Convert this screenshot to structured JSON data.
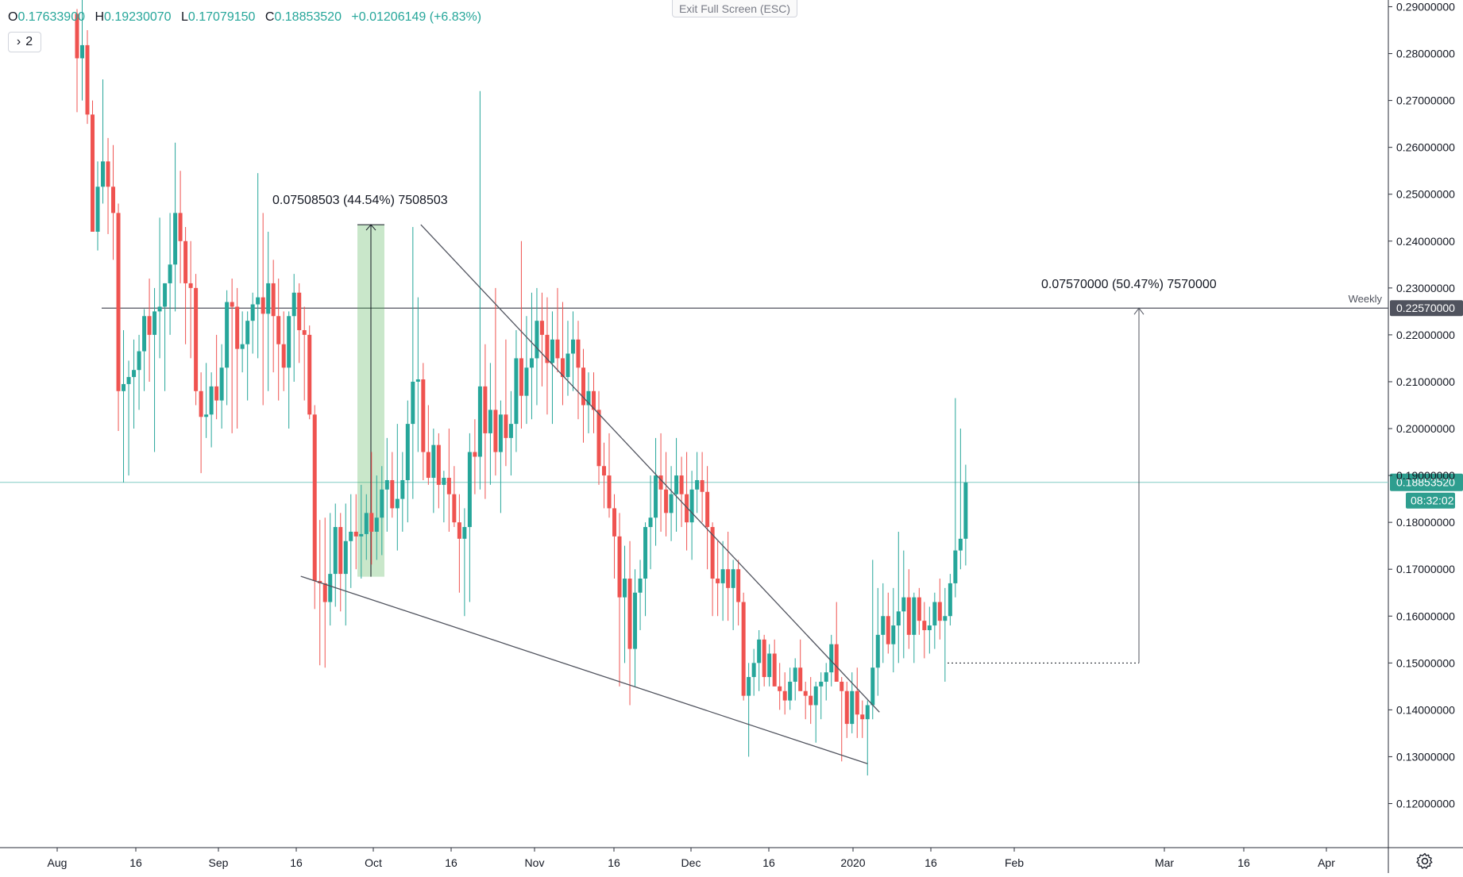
{
  "header": {
    "open_label": "O",
    "open_value": "0.17633900",
    "high_label": "H",
    "high_value": "0.19230070",
    "low_label": "L",
    "low_value": "0.17079150",
    "close_label": "C",
    "close_value": "0.18853520",
    "change_value": "+0.01206149 (+6.83%)",
    "collapse_label": "2",
    "exit_fullscreen_label": "Exit Full Screen (ESC)"
  },
  "settings_icon": "gear-icon",
  "colors": {
    "up": "#26a69a",
    "down": "#ef5350",
    "accent_green": "#2e9e8f",
    "line": "#787b86"
  },
  "chart_data": {
    "type": "candlestick",
    "x_ticks": [
      "Aug",
      "16",
      "Sep",
      "16",
      "Oct",
      "16",
      "Nov",
      "16",
      "Dec",
      "16",
      "2020",
      "16",
      "Feb",
      "Mar",
      "16",
      "Apr"
    ],
    "y_ticks": [
      "0.12000000",
      "0.13000000",
      "0.14000000",
      "0.15000000",
      "0.16000000",
      "0.17000000",
      "0.18000000",
      "0.19000000",
      "0.20000000",
      "0.21000000",
      "0.22000000",
      "0.23000000",
      "0.24000000",
      "0.25000000",
      "0.26000000",
      "0.27000000",
      "0.28000000",
      "0.29000000"
    ],
    "ylim": [
      0.11,
      0.292
    ],
    "grid": false,
    "last_price": {
      "value": 0.1885352,
      "label": "0.18853520",
      "countdown": "08:32:02"
    },
    "weekly_level": {
      "value": 0.2257,
      "label": "0.22570000",
      "name": "Weekly"
    },
    "annotations": [
      {
        "text": "0.07508503 (44.54%) 7508503",
        "from": 0.1684,
        "to": 0.2435
      },
      {
        "text": "0.07570000 (50.47%) 7570000",
        "from": 0.15,
        "to": 0.2257
      }
    ],
    "support_line": [
      [
        0.1685,
        0.1285
      ]
    ],
    "resistance_line": [
      [
        0.2435,
        0.1395
      ]
    ],
    "candles": [
      [
        0.2885,
        0.2895,
        0.2675,
        0.279
      ],
      [
        0.279,
        0.292,
        0.27,
        0.2818
      ],
      [
        0.2818,
        0.285,
        0.265,
        0.267
      ],
      [
        0.267,
        0.27,
        0.243,
        0.242
      ],
      [
        0.242,
        0.257,
        0.238,
        0.2516
      ],
      [
        0.2516,
        0.2745,
        0.248,
        0.257
      ],
      [
        0.257,
        0.262,
        0.2415,
        0.2516
      ],
      [
        0.2516,
        0.2605,
        0.236,
        0.246
      ],
      [
        0.246,
        0.248,
        0.1995,
        0.208
      ],
      [
        0.208,
        0.221,
        0.1885,
        0.2095
      ],
      [
        0.2095,
        0.2145,
        0.19,
        0.211
      ],
      [
        0.211,
        0.219,
        0.2,
        0.2125
      ],
      [
        0.2125,
        0.22,
        0.204,
        0.2165
      ],
      [
        0.2165,
        0.2255,
        0.208,
        0.224
      ],
      [
        0.224,
        0.232,
        0.21,
        0.22
      ],
      [
        0.22,
        0.23,
        0.195,
        0.225
      ],
      [
        0.225,
        0.245,
        0.215,
        0.226
      ],
      [
        0.226,
        0.231,
        0.208,
        0.231
      ],
      [
        0.231,
        0.246,
        0.22,
        0.235
      ],
      [
        0.235,
        0.261,
        0.225,
        0.246
      ],
      [
        0.246,
        0.255,
        0.231,
        0.24
      ],
      [
        0.24,
        0.243,
        0.218,
        0.231
      ],
      [
        0.231,
        0.24,
        0.215,
        0.23
      ],
      [
        0.23,
        0.233,
        0.205,
        0.208
      ],
      [
        0.208,
        0.212,
        0.1905,
        0.2025
      ],
      [
        0.2025,
        0.214,
        0.198,
        0.203
      ],
      [
        0.203,
        0.212,
        0.196,
        0.209
      ],
      [
        0.209,
        0.22,
        0.202,
        0.206
      ],
      [
        0.206,
        0.218,
        0.2,
        0.213
      ],
      [
        0.213,
        0.2295,
        0.205,
        0.227
      ],
      [
        0.227,
        0.232,
        0.199,
        0.226
      ],
      [
        0.226,
        0.23,
        0.2,
        0.217
      ],
      [
        0.217,
        0.225,
        0.212,
        0.218
      ],
      [
        0.218,
        0.225,
        0.206,
        0.223
      ],
      [
        0.223,
        0.229,
        0.216,
        0.2265
      ],
      [
        0.2265,
        0.2545,
        0.215,
        0.228
      ],
      [
        0.228,
        0.246,
        0.205,
        0.2245
      ],
      [
        0.2245,
        0.242,
        0.208,
        0.231
      ],
      [
        0.231,
        0.236,
        0.212,
        0.224
      ],
      [
        0.224,
        0.232,
        0.206,
        0.218
      ],
      [
        0.218,
        0.225,
        0.208,
        0.213
      ],
      [
        0.213,
        0.225,
        0.2,
        0.224
      ],
      [
        0.224,
        0.233,
        0.21,
        0.229
      ],
      [
        0.229,
        0.231,
        0.214,
        0.221
      ],
      [
        0.221,
        0.226,
        0.206,
        0.22
      ],
      [
        0.22,
        0.222,
        0.202,
        0.203
      ],
      [
        0.203,
        0.205,
        0.1615,
        0.1675
      ],
      [
        0.1675,
        0.1805,
        0.1495,
        0.167
      ],
      [
        0.167,
        0.181,
        0.149,
        0.163
      ],
      [
        0.163,
        0.182,
        0.158,
        0.169
      ],
      [
        0.169,
        0.184,
        0.162,
        0.179
      ],
      [
        0.179,
        0.182,
        0.161,
        0.169
      ],
      [
        0.169,
        0.184,
        0.158,
        0.176
      ],
      [
        0.176,
        0.186,
        0.166,
        0.178
      ],
      [
        0.178,
        0.186,
        0.17,
        0.177
      ],
      [
        0.177,
        0.188,
        0.168,
        0.1775
      ],
      [
        0.1775,
        0.186,
        0.172,
        0.182
      ],
      [
        0.182,
        0.195,
        0.171,
        0.178
      ],
      [
        0.178,
        0.19,
        0.172,
        0.181
      ],
      [
        0.181,
        0.192,
        0.173,
        0.187
      ],
      [
        0.187,
        0.198,
        0.178,
        0.189
      ],
      [
        0.189,
        0.195,
        0.181,
        0.183
      ],
      [
        0.183,
        0.201,
        0.174,
        0.185
      ],
      [
        0.185,
        0.195,
        0.178,
        0.189
      ],
      [
        0.189,
        0.206,
        0.18,
        0.201
      ],
      [
        0.201,
        0.243,
        0.185,
        0.21
      ],
      [
        0.21,
        0.228,
        0.195,
        0.2105
      ],
      [
        0.2105,
        0.214,
        0.189,
        0.195
      ],
      [
        0.195,
        0.205,
        0.188,
        0.1895
      ],
      [
        0.1895,
        0.2,
        0.182,
        0.1965
      ],
      [
        0.1965,
        0.199,
        0.183,
        0.188
      ],
      [
        0.188,
        0.191,
        0.18,
        0.1895
      ],
      [
        0.1895,
        0.2,
        0.178,
        0.186
      ],
      [
        0.186,
        0.192,
        0.179,
        0.18
      ],
      [
        0.18,
        0.186,
        0.165,
        0.1765
      ],
      [
        0.1765,
        0.183,
        0.16,
        0.179
      ],
      [
        0.179,
        0.199,
        0.163,
        0.195
      ],
      [
        0.195,
        0.202,
        0.186,
        0.194
      ],
      [
        0.194,
        0.272,
        0.187,
        0.209
      ],
      [
        0.209,
        0.218,
        0.185,
        0.199
      ],
      [
        0.199,
        0.214,
        0.188,
        0.204
      ],
      [
        0.204,
        0.23,
        0.19,
        0.195
      ],
      [
        0.195,
        0.206,
        0.182,
        0.203
      ],
      [
        0.203,
        0.219,
        0.192,
        0.198
      ],
      [
        0.198,
        0.208,
        0.19,
        0.201
      ],
      [
        0.201,
        0.221,
        0.195,
        0.215
      ],
      [
        0.215,
        0.24,
        0.2,
        0.207
      ],
      [
        0.207,
        0.224,
        0.201,
        0.213
      ],
      [
        0.213,
        0.229,
        0.202,
        0.215
      ],
      [
        0.215,
        0.23,
        0.205,
        0.223
      ],
      [
        0.223,
        0.229,
        0.209,
        0.22
      ],
      [
        0.22,
        0.228,
        0.203,
        0.214
      ],
      [
        0.214,
        0.225,
        0.201,
        0.219
      ],
      [
        0.219,
        0.23,
        0.212,
        0.215
      ],
      [
        0.215,
        0.227,
        0.205,
        0.211
      ],
      [
        0.211,
        0.223,
        0.207,
        0.216
      ],
      [
        0.216,
        0.225,
        0.208,
        0.219
      ],
      [
        0.219,
        0.223,
        0.202,
        0.213
      ],
      [
        0.213,
        0.217,
        0.197,
        0.205
      ],
      [
        0.205,
        0.212,
        0.199,
        0.208
      ],
      [
        0.208,
        0.212,
        0.199,
        0.204
      ],
      [
        0.204,
        0.208,
        0.188,
        0.192
      ],
      [
        0.192,
        0.197,
        0.183,
        0.19
      ],
      [
        0.19,
        0.199,
        0.181,
        0.183
      ],
      [
        0.183,
        0.186,
        0.168,
        0.177
      ],
      [
        0.177,
        0.182,
        0.145,
        0.164
      ],
      [
        0.164,
        0.175,
        0.15,
        0.168
      ],
      [
        0.168,
        0.176,
        0.141,
        0.153
      ],
      [
        0.153,
        0.17,
        0.145,
        0.165
      ],
      [
        0.165,
        0.172,
        0.157,
        0.168
      ],
      [
        0.168,
        0.18,
        0.16,
        0.179
      ],
      [
        0.179,
        0.19,
        0.17,
        0.181
      ],
      [
        0.181,
        0.198,
        0.175,
        0.19
      ],
      [
        0.19,
        0.199,
        0.178,
        0.187
      ],
      [
        0.187,
        0.195,
        0.177,
        0.182
      ],
      [
        0.182,
        0.192,
        0.176,
        0.186
      ],
      [
        0.186,
        0.198,
        0.178,
        0.19
      ],
      [
        0.19,
        0.194,
        0.179,
        0.186
      ],
      [
        0.186,
        0.195,
        0.174,
        0.18
      ],
      [
        0.18,
        0.191,
        0.172,
        0.187
      ],
      [
        0.187,
        0.195,
        0.182,
        0.189
      ],
      [
        0.189,
        0.195,
        0.18,
        0.1865
      ],
      [
        0.1865,
        0.192,
        0.17,
        0.179
      ],
      [
        0.179,
        0.18,
        0.16,
        0.168
      ],
      [
        0.168,
        0.176,
        0.16,
        0.167
      ],
      [
        0.167,
        0.176,
        0.159,
        0.17
      ],
      [
        0.17,
        0.178,
        0.159,
        0.166
      ],
      [
        0.166,
        0.172,
        0.157,
        0.17
      ],
      [
        0.17,
        0.172,
        0.158,
        0.163
      ],
      [
        0.163,
        0.165,
        0.142,
        0.143
      ],
      [
        0.143,
        0.15,
        0.13,
        0.147
      ],
      [
        0.147,
        0.153,
        0.143,
        0.15
      ],
      [
        0.15,
        0.157,
        0.144,
        0.155
      ],
      [
        0.155,
        0.156,
        0.145,
        0.147
      ],
      [
        0.147,
        0.154,
        0.145,
        0.152
      ],
      [
        0.152,
        0.155,
        0.145,
        0.145
      ],
      [
        0.145,
        0.15,
        0.14,
        0.144
      ],
      [
        0.144,
        0.148,
        0.139,
        0.142
      ],
      [
        0.142,
        0.149,
        0.14,
        0.146
      ],
      [
        0.146,
        0.151,
        0.142,
        0.149
      ],
      [
        0.149,
        0.155,
        0.144,
        0.144
      ],
      [
        0.144,
        0.146,
        0.138,
        0.143
      ],
      [
        0.143,
        0.147,
        0.137,
        0.141
      ],
      [
        0.141,
        0.146,
        0.133,
        0.145
      ],
      [
        0.145,
        0.148,
        0.138,
        0.146
      ],
      [
        0.146,
        0.15,
        0.142,
        0.148
      ],
      [
        0.148,
        0.156,
        0.145,
        0.154
      ],
      [
        0.154,
        0.163,
        0.146,
        0.146
      ],
      [
        0.146,
        0.147,
        0.129,
        0.144
      ],
      [
        0.144,
        0.146,
        0.134,
        0.137
      ],
      [
        0.137,
        0.148,
        0.135,
        0.144
      ],
      [
        0.144,
        0.149,
        0.134,
        0.139
      ],
      [
        0.139,
        0.142,
        0.134,
        0.138
      ],
      [
        0.138,
        0.142,
        0.126,
        0.141
      ],
      [
        0.141,
        0.172,
        0.138,
        0.149
      ],
      [
        0.149,
        0.166,
        0.143,
        0.156
      ],
      [
        0.156,
        0.167,
        0.15,
        0.16
      ],
      [
        0.16,
        0.165,
        0.152,
        0.154
      ],
      [
        0.154,
        0.166,
        0.148,
        0.158
      ],
      [
        0.158,
        0.178,
        0.15,
        0.161
      ],
      [
        0.161,
        0.174,
        0.151,
        0.164
      ],
      [
        0.164,
        0.17,
        0.153,
        0.156
      ],
      [
        0.156,
        0.165,
        0.15,
        0.164
      ],
      [
        0.164,
        0.166,
        0.156,
        0.159
      ],
      [
        0.159,
        0.163,
        0.151,
        0.157
      ],
      [
        0.157,
        0.162,
        0.152,
        0.158
      ],
      [
        0.158,
        0.165,
        0.153,
        0.163
      ],
      [
        0.163,
        0.168,
        0.155,
        0.159
      ],
      [
        0.159,
        0.166,
        0.146,
        0.16
      ],
      [
        0.16,
        0.169,
        0.158,
        0.167
      ],
      [
        0.167,
        0.2065,
        0.164,
        0.174
      ],
      [
        0.174,
        0.2,
        0.17,
        0.1765
      ],
      [
        0.1765,
        0.1923,
        0.1708,
        0.1885
      ]
    ]
  }
}
